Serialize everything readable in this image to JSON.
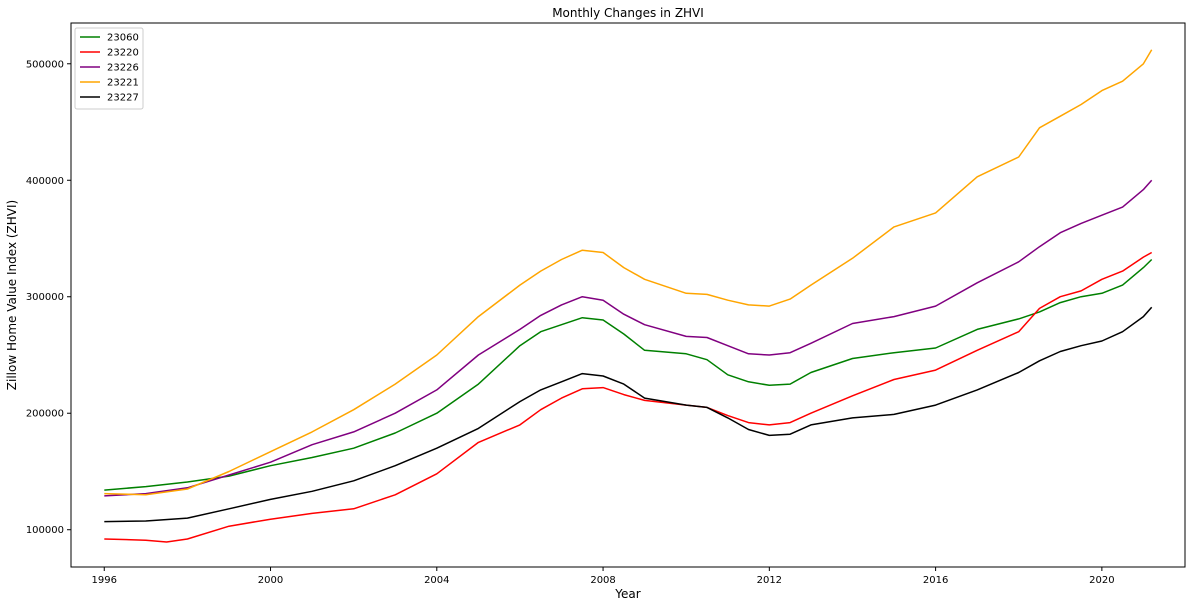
{
  "chart_data": {
    "type": "line",
    "title": "Monthly Changes in ZHVI",
    "xlabel": "Year",
    "ylabel": "Zillow Home Value Index (ZHVI)",
    "xlim": [
      1995.2,
      2022.0
    ],
    "ylim": [
      68000,
      535000
    ],
    "x_ticks": [
      1996,
      2000,
      2004,
      2008,
      2012,
      2016,
      2020
    ],
    "x_tick_labels": [
      "1996",
      "2000",
      "2004",
      "2008",
      "2012",
      "2016",
      "2020"
    ],
    "y_ticks": [
      100000,
      200000,
      300000,
      400000,
      500000
    ],
    "y_tick_labels": [
      "100000",
      "200000",
      "300000",
      "400000",
      "500000"
    ],
    "grid": false,
    "legend_position": "top-left",
    "series": [
      {
        "name": "23060",
        "color": "#008000",
        "points": [
          [
            1996.0,
            134000
          ],
          [
            1997.0,
            137000
          ],
          [
            1998.0,
            141000
          ],
          [
            1999.0,
            146000
          ],
          [
            2000.0,
            155000
          ],
          [
            2001.0,
            162000
          ],
          [
            2002.0,
            170000
          ],
          [
            2003.0,
            183000
          ],
          [
            2004.0,
            200000
          ],
          [
            2005.0,
            225000
          ],
          [
            2006.0,
            258000
          ],
          [
            2006.5,
            270000
          ],
          [
            2007.0,
            276000
          ],
          [
            2007.5,
            282000
          ],
          [
            2008.0,
            280000
          ],
          [
            2008.5,
            268000
          ],
          [
            2009.0,
            254000
          ],
          [
            2010.0,
            251000
          ],
          [
            2010.5,
            246000
          ],
          [
            2011.0,
            233000
          ],
          [
            2011.5,
            227000
          ],
          [
            2012.0,
            224000
          ],
          [
            2012.5,
            225000
          ],
          [
            2013.0,
            235000
          ],
          [
            2014.0,
            247000
          ],
          [
            2015.0,
            252000
          ],
          [
            2016.0,
            256000
          ],
          [
            2017.0,
            272000
          ],
          [
            2018.0,
            281000
          ],
          [
            2018.5,
            287000
          ],
          [
            2019.0,
            295000
          ],
          [
            2019.5,
            300000
          ],
          [
            2020.0,
            303000
          ],
          [
            2020.5,
            310000
          ],
          [
            2021.0,
            325000
          ],
          [
            2021.2,
            332000
          ]
        ]
      },
      {
        "name": "23220",
        "color": "#ff0000",
        "points": [
          [
            1996.0,
            92000
          ],
          [
            1997.0,
            91000
          ],
          [
            1997.5,
            89500
          ],
          [
            1998.0,
            92000
          ],
          [
            1999.0,
            103000
          ],
          [
            2000.0,
            109000
          ],
          [
            2001.0,
            114000
          ],
          [
            2002.0,
            118000
          ],
          [
            2003.0,
            130000
          ],
          [
            2004.0,
            148000
          ],
          [
            2005.0,
            175000
          ],
          [
            2006.0,
            190000
          ],
          [
            2006.5,
            203000
          ],
          [
            2007.0,
            213000
          ],
          [
            2007.5,
            221000
          ],
          [
            2008.0,
            222000
          ],
          [
            2008.5,
            216000
          ],
          [
            2009.0,
            211000
          ],
          [
            2010.0,
            207000
          ],
          [
            2010.5,
            205000
          ],
          [
            2011.0,
            198000
          ],
          [
            2011.5,
            192000
          ],
          [
            2012.0,
            190000
          ],
          [
            2012.5,
            192000
          ],
          [
            2013.0,
            200000
          ],
          [
            2014.0,
            215000
          ],
          [
            2015.0,
            229000
          ],
          [
            2016.0,
            237000
          ],
          [
            2017.0,
            254000
          ],
          [
            2018.0,
            270000
          ],
          [
            2018.5,
            290000
          ],
          [
            2019.0,
            300000
          ],
          [
            2019.5,
            305000
          ],
          [
            2020.0,
            315000
          ],
          [
            2020.5,
            322000
          ],
          [
            2021.0,
            334000
          ],
          [
            2021.2,
            338000
          ]
        ]
      },
      {
        "name": "23226",
        "color": "#800080",
        "points": [
          [
            1996.0,
            129000
          ],
          [
            1997.0,
            131000
          ],
          [
            1998.0,
            136000
          ],
          [
            1999.0,
            147000
          ],
          [
            2000.0,
            158000
          ],
          [
            2001.0,
            173000
          ],
          [
            2002.0,
            184000
          ],
          [
            2003.0,
            200000
          ],
          [
            2004.0,
            220000
          ],
          [
            2005.0,
            250000
          ],
          [
            2006.0,
            272000
          ],
          [
            2006.5,
            284000
          ],
          [
            2007.0,
            293000
          ],
          [
            2007.5,
            300000
          ],
          [
            2008.0,
            297000
          ],
          [
            2008.5,
            285000
          ],
          [
            2009.0,
            276000
          ],
          [
            2010.0,
            266000
          ],
          [
            2010.5,
            265000
          ],
          [
            2011.0,
            258000
          ],
          [
            2011.5,
            251000
          ],
          [
            2012.0,
            250000
          ],
          [
            2012.5,
            252000
          ],
          [
            2013.0,
            260000
          ],
          [
            2014.0,
            277000
          ],
          [
            2015.0,
            283000
          ],
          [
            2016.0,
            292000
          ],
          [
            2017.0,
            312000
          ],
          [
            2018.0,
            330000
          ],
          [
            2018.5,
            343000
          ],
          [
            2019.0,
            355000
          ],
          [
            2019.5,
            363000
          ],
          [
            2020.0,
            370000
          ],
          [
            2020.5,
            377000
          ],
          [
            2021.0,
            392000
          ],
          [
            2021.2,
            400000
          ]
        ]
      },
      {
        "name": "23221",
        "color": "#ffa500",
        "points": [
          [
            1996.0,
            131000
          ],
          [
            1997.0,
            130000
          ],
          [
            1998.0,
            135000
          ],
          [
            1999.0,
            150000
          ],
          [
            2000.0,
            167000
          ],
          [
            2001.0,
            184000
          ],
          [
            2002.0,
            203000
          ],
          [
            2003.0,
            225000
          ],
          [
            2004.0,
            250000
          ],
          [
            2005.0,
            283000
          ],
          [
            2006.0,
            310000
          ],
          [
            2006.5,
            322000
          ],
          [
            2007.0,
            332000
          ],
          [
            2007.5,
            340000
          ],
          [
            2008.0,
            338000
          ],
          [
            2008.5,
            325000
          ],
          [
            2009.0,
            315000
          ],
          [
            2010.0,
            303000
          ],
          [
            2010.5,
            302000
          ],
          [
            2011.0,
            297000
          ],
          [
            2011.5,
            293000
          ],
          [
            2012.0,
            292000
          ],
          [
            2012.5,
            298000
          ],
          [
            2013.0,
            310000
          ],
          [
            2014.0,
            333000
          ],
          [
            2015.0,
            360000
          ],
          [
            2016.0,
            372000
          ],
          [
            2017.0,
            403000
          ],
          [
            2018.0,
            420000
          ],
          [
            2018.5,
            445000
          ],
          [
            2019.0,
            455000
          ],
          [
            2019.5,
            465000
          ],
          [
            2020.0,
            477000
          ],
          [
            2020.5,
            485000
          ],
          [
            2021.0,
            500000
          ],
          [
            2021.2,
            512000
          ]
        ]
      },
      {
        "name": "23227",
        "color": "#000000",
        "points": [
          [
            1996.0,
            107000
          ],
          [
            1997.0,
            107500
          ],
          [
            1998.0,
            110000
          ],
          [
            1999.0,
            118000
          ],
          [
            2000.0,
            126000
          ],
          [
            2001.0,
            133000
          ],
          [
            2002.0,
            142000
          ],
          [
            2003.0,
            155000
          ],
          [
            2004.0,
            170000
          ],
          [
            2005.0,
            187000
          ],
          [
            2006.0,
            210000
          ],
          [
            2006.5,
            220000
          ],
          [
            2007.0,
            227000
          ],
          [
            2007.5,
            234000
          ],
          [
            2008.0,
            232000
          ],
          [
            2008.5,
            225000
          ],
          [
            2009.0,
            213000
          ],
          [
            2010.0,
            207000
          ],
          [
            2010.5,
            205000
          ],
          [
            2011.0,
            196000
          ],
          [
            2011.5,
            186000
          ],
          [
            2012.0,
            181000
          ],
          [
            2012.5,
            182000
          ],
          [
            2013.0,
            190000
          ],
          [
            2014.0,
            196000
          ],
          [
            2015.0,
            199000
          ],
          [
            2016.0,
            207000
          ],
          [
            2017.0,
            220000
          ],
          [
            2018.0,
            235000
          ],
          [
            2018.5,
            245000
          ],
          [
            2019.0,
            253000
          ],
          [
            2019.5,
            258000
          ],
          [
            2020.0,
            262000
          ],
          [
            2020.5,
            270000
          ],
          [
            2021.0,
            283000
          ],
          [
            2021.2,
            291000
          ]
        ]
      }
    ]
  }
}
